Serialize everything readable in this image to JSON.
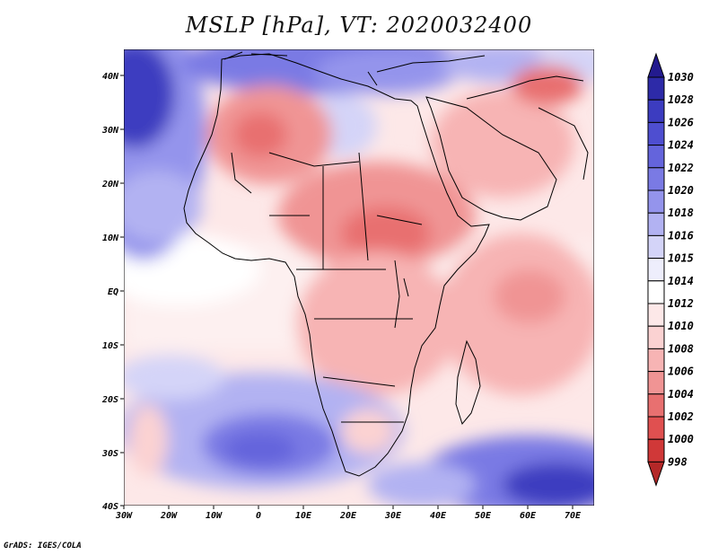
{
  "title": "MSLP [hPa], VT: 2020032400",
  "credit": "GrADS: IGES/COLA",
  "map": {
    "lon_ticks": [
      "30W",
      "20W",
      "10W",
      "0",
      "10E",
      "20E",
      "30E",
      "40E",
      "50E",
      "60E",
      "70E"
    ],
    "lat_ticks": [
      "40N",
      "30N",
      "20N",
      "10N",
      "EQ",
      "10S",
      "20S",
      "30S",
      "40S"
    ]
  },
  "colorbar": {
    "levels": [
      "1030",
      "1028",
      "1026",
      "1024",
      "1022",
      "1020",
      "1018",
      "1016",
      "1015",
      "1014",
      "1012",
      "1010",
      "1008",
      "1006",
      "1004",
      "1002",
      "1000",
      "998"
    ],
    "colors": {
      "top_triangle": "#231a8f",
      "bands": [
        "#2d2aa8",
        "#3c3cc0",
        "#4e4ed0",
        "#6464dc",
        "#7a7ae4",
        "#9494ec",
        "#b2b2f2",
        "#d4d4f8",
        "#eeeefc",
        "#ffffff",
        "#fde8e8",
        "#fbd2d2",
        "#f7b4b4",
        "#f09494",
        "#e87070",
        "#e05050",
        "#d03838",
        "#b42828"
      ]
    }
  }
}
